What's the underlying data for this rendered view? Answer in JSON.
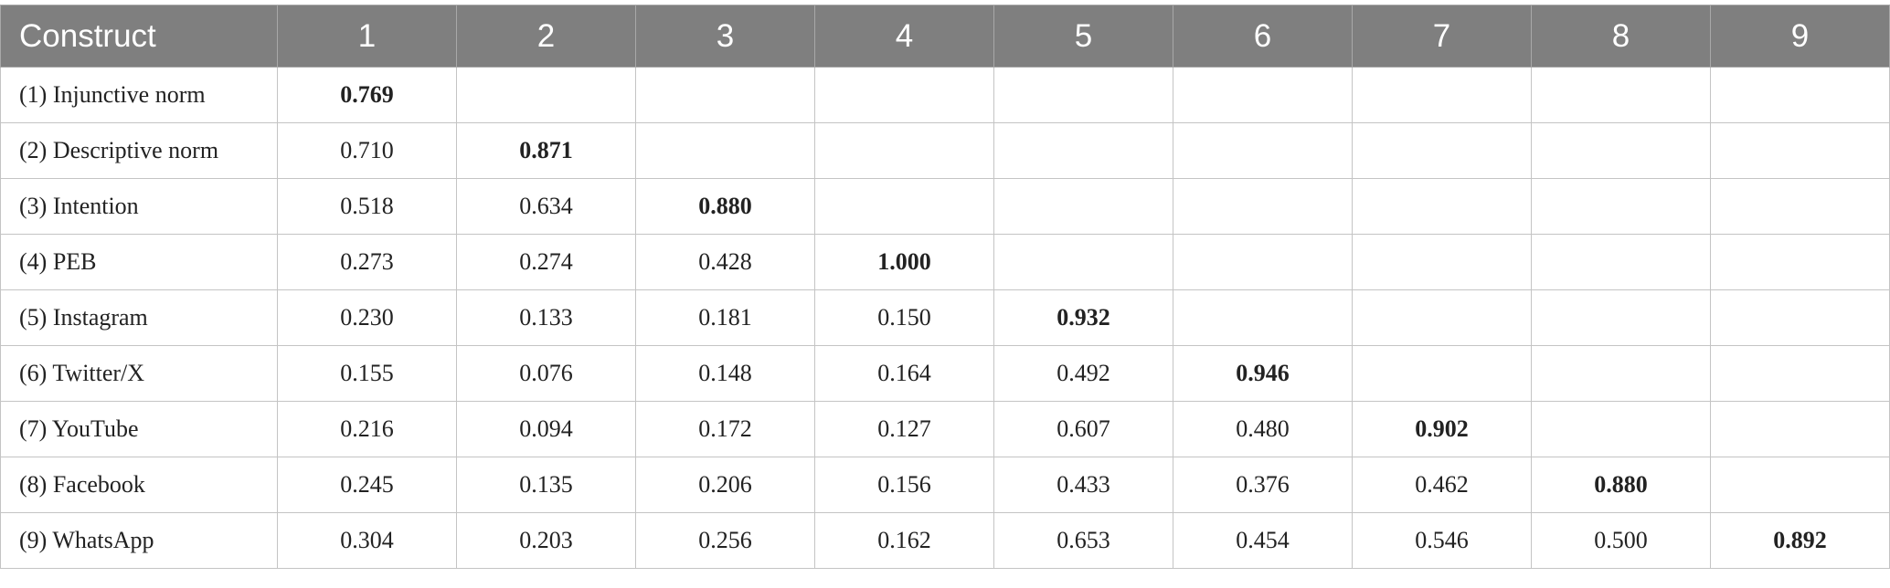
{
  "table": {
    "header": [
      "Construct",
      "1",
      "2",
      "3",
      "4",
      "5",
      "6",
      "7",
      "8",
      "9"
    ],
    "rows": [
      [
        "(1) Injunctive norm",
        "0.769"
      ],
      [
        "(2) Descriptive norm",
        "0.710",
        "0.871"
      ],
      [
        "(3) Intention",
        "0.518",
        "0.634",
        "0.880"
      ],
      [
        "(4) PEB",
        "0.273",
        "0.274",
        "0.428",
        "1.000"
      ],
      [
        "(5) Instagram",
        "0.230",
        "0.133",
        "0.181",
        "0.150",
        "0.932"
      ],
      [
        "(6) Twitter/X",
        "0.155",
        "0.076",
        "0.148",
        "0.164",
        "0.492",
        "0.946"
      ],
      [
        "(7) YouTube",
        "0.216",
        "0.094",
        "0.172",
        "0.127",
        "0.607",
        "0.480",
        "0.902"
      ],
      [
        "(8) Facebook",
        "0.245",
        "0.135",
        "0.206",
        "0.156",
        "0.433",
        "0.376",
        "0.462",
        "0.880"
      ],
      [
        "(9) WhatsApp",
        "0.304",
        "0.203",
        "0.256",
        "0.162",
        "0.653",
        "0.454",
        "0.546",
        "0.500",
        "0.892"
      ]
    ]
  }
}
